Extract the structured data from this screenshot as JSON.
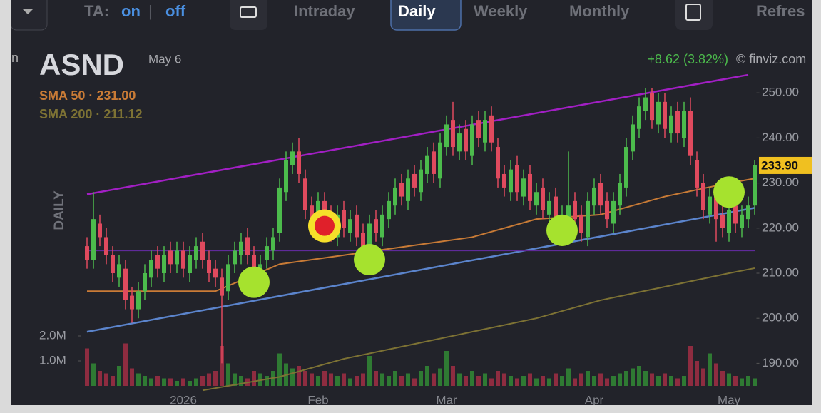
{
  "toolbar": {
    "ta": "TA:",
    "on": "on",
    "divider": "|",
    "off": "off",
    "tabs": [
      "Intraday",
      "Daily",
      "Weekly",
      "Monthly"
    ],
    "active_tab": 1,
    "refresh": "Refres"
  },
  "chart_data": {
    "type": "candlestick",
    "cut_text": "n",
    "title": "ASND",
    "date": "May 6",
    "change": "+8.62 (3.82%)",
    "source": "© finviz.com",
    "period": "DAILY",
    "separator": "·",
    "categories": [
      null,
      null,
      null,
      null,
      null,
      null,
      null,
      null,
      null,
      null,
      null,
      null,
      null,
      null,
      null,
      "2026",
      null,
      null,
      null,
      null,
      null,
      null,
      null,
      null,
      null,
      null,
      null,
      null,
      null,
      null,
      null,
      null,
      null,
      null,
      null,
      null,
      "Feb",
      null,
      null,
      null,
      null,
      null,
      null,
      null,
      null,
      null,
      null,
      null,
      null,
      null,
      null,
      null,
      null,
      null,
      null,
      null,
      "Mar",
      null,
      null,
      null,
      null,
      null,
      null,
      null,
      null,
      null,
      null,
      null,
      null,
      null,
      null,
      null,
      null,
      null,
      null,
      null,
      null,
      null,
      null,
      "Apr",
      null,
      null,
      null,
      null,
      null,
      null,
      null,
      null,
      null,
      null,
      null,
      null,
      null,
      null,
      null,
      null,
      null,
      null,
      null,
      null,
      "May",
      null,
      null,
      null,
      null
    ],
    "ohlc": {
      "up_color": "#4cbb4c",
      "down_color": "#e04a5e",
      "open": [
        216,
        213,
        221,
        218,
        214,
        209,
        211,
        205,
        202,
        206,
        209,
        214,
        210,
        215,
        212,
        215,
        210,
        213,
        217,
        213,
        211,
        209,
        206,
        212,
        214,
        218,
        214,
        209,
        213,
        215,
        219,
        228,
        234,
        237,
        231,
        225,
        221,
        226,
        223,
        218,
        224,
        219,
        223,
        219,
        214,
        222,
        218,
        222,
        225,
        230,
        226,
        232,
        228,
        232,
        237,
        231,
        238,
        244,
        237,
        242,
        236,
        244,
        239,
        245,
        238,
        232,
        228,
        234,
        227,
        232,
        225,
        229,
        223,
        227,
        220,
        222,
        226,
        223,
        218,
        225,
        230,
        226,
        221,
        225,
        229,
        237,
        242,
        246,
        250,
        243,
        248,
        241,
        246,
        240,
        246,
        235,
        230,
        223,
        228,
        223,
        219,
        225,
        220,
        222,
        225
      ],
      "high": [
        218,
        228,
        223,
        220,
        216,
        214,
        213,
        207,
        208,
        212,
        215,
        216,
        216,
        217,
        217,
        217,
        216,
        218,
        219,
        215,
        213,
        211,
        214,
        217,
        219,
        220,
        216,
        214,
        218,
        220,
        231,
        237,
        239,
        240,
        233,
        227,
        228,
        228,
        225,
        225,
        226,
        224,
        225,
        221,
        223,
        224,
        225,
        228,
        231,
        232,
        233,
        234,
        235,
        238,
        239,
        241,
        245,
        248,
        243,
        244,
        245,
        246,
        246,
        247,
        240,
        234,
        235,
        236,
        233,
        234,
        230,
        231,
        228,
        229,
        225,
        237,
        228,
        225,
        228,
        231,
        232,
        228,
        228,
        232,
        240,
        245,
        249,
        251,
        251,
        250,
        250,
        247,
        248,
        248,
        249,
        237,
        232,
        229,
        230,
        225,
        226,
        227,
        225,
        227,
        235
      ],
      "low": [
        211,
        211,
        216,
        212,
        208,
        207,
        202,
        199,
        200,
        204,
        207,
        209,
        208,
        210,
        210,
        209,
        208,
        211,
        211,
        208,
        207,
        190,
        204,
        210,
        212,
        212,
        206,
        207,
        211,
        213,
        217,
        226,
        232,
        230,
        222,
        219,
        219,
        220,
        217,
        216,
        218,
        217,
        216,
        213,
        212,
        217,
        216,
        220,
        223,
        225,
        224,
        227,
        226,
        230,
        230,
        229,
        236,
        236,
        235,
        235,
        234,
        238,
        237,
        237,
        229,
        227,
        226,
        226,
        225,
        224,
        223,
        222,
        221,
        219,
        218,
        220,
        220,
        217,
        216,
        223,
        223,
        220,
        219,
        223,
        227,
        235,
        240,
        244,
        242,
        241,
        240,
        239,
        239,
        238,
        234,
        227,
        222,
        221,
        217,
        218,
        217,
        219,
        218,
        220,
        223
      ],
      "close": [
        213,
        222,
        218,
        214,
        210,
        212,
        204,
        202,
        206,
        210,
        213,
        211,
        214,
        212,
        215,
        211,
        214,
        216,
        213,
        210,
        209,
        205,
        212,
        215,
        217,
        214,
        209,
        212,
        216,
        218,
        229,
        235,
        237,
        232,
        224,
        221,
        226,
        222,
        219,
        223,
        220,
        222,
        218,
        215,
        221,
        219,
        223,
        226,
        229,
        227,
        231,
        229,
        233,
        236,
        232,
        239,
        243,
        238,
        241,
        237,
        243,
        240,
        244,
        239,
        231,
        229,
        233,
        228,
        231,
        226,
        228,
        224,
        226,
        221,
        223,
        225,
        222,
        219,
        226,
        229,
        225,
        222,
        226,
        230,
        238,
        243,
        247,
        249,
        244,
        248,
        242,
        245,
        241,
        246,
        236,
        229,
        224,
        227,
        222,
        220,
        224,
        221,
        223,
        225,
        233.9
      ]
    },
    "last_price": {
      "value": 233.9,
      "label": "233.90",
      "color": "#f0c020"
    },
    "volume": {
      "up_color": "#2f7a33",
      "down_color": "#8e2c40",
      "values": [
        1.5,
        0.9,
        0.6,
        0.5,
        0.4,
        0.8,
        1.7,
        0.7,
        0.5,
        0.4,
        0.3,
        0.4,
        0.3,
        0.3,
        0.2,
        0.3,
        0.2,
        0.3,
        0.4,
        0.5,
        0.6,
        1.6,
        0.9,
        0.5,
        0.4,
        0.3,
        0.6,
        0.5,
        0.4,
        0.6,
        1.3,
        0.9,
        0.7,
        0.8,
        0.6,
        0.5,
        0.4,
        0.6,
        0.5,
        0.4,
        0.5,
        0.3,
        0.4,
        0.5,
        1.2,
        0.6,
        0.5,
        0.4,
        0.6,
        0.4,
        0.5,
        0.3,
        0.6,
        0.8,
        0.5,
        0.7,
        1.4,
        0.8,
        0.5,
        0.4,
        0.6,
        0.4,
        0.5,
        0.3,
        0.6,
        0.5,
        0.4,
        0.3,
        0.4,
        0.5,
        0.3,
        0.4,
        0.3,
        0.5,
        0.4,
        0.7,
        0.3,
        0.5,
        0.6,
        0.4,
        0.5,
        0.3,
        0.4,
        0.5,
        0.6,
        0.7,
        0.8,
        0.6,
        0.5,
        0.4,
        0.5,
        0.4,
        0.3,
        0.4,
        1.6,
        1.0,
        0.7,
        1.3,
        0.9,
        0.6,
        0.5,
        0.4,
        0.3,
        0.4,
        0.3
      ],
      "vlim": [
        0,
        13
      ],
      "ticks": [
        {
          "value": 2,
          "label": "2.0M"
        },
        {
          "value": 1,
          "label": "1.0M"
        }
      ]
    },
    "sma": [
      {
        "name": "SMA 50",
        "color": "#c97b36",
        "value": 231.0,
        "value_label": "231.00",
        "x": [
          0,
          10,
          20,
          30,
          40,
          50,
          60,
          70,
          80,
          90,
          100,
          104
        ],
        "values": [
          206,
          206,
          206,
          212,
          214,
          216,
          218,
          222,
          223,
          227,
          230,
          231
        ]
      },
      {
        "name": "SMA 200",
        "color": "#7d7234",
        "value": 211.12,
        "value_label": "211.12",
        "x": [
          18,
          30,
          40,
          50,
          60,
          70,
          80,
          90,
          100,
          104
        ],
        "values": [
          184,
          187,
          191,
          194,
          197,
          200,
          204,
          207,
          210,
          211.12
        ]
      }
    ],
    "ylim": [
      185,
      257
    ],
    "yticks": [
      {
        "value": 250,
        "label": "250.00"
      },
      {
        "value": 240,
        "label": "240.00"
      },
      {
        "value": 230,
        "label": "230.00"
      },
      {
        "value": 220,
        "label": "220.00"
      },
      {
        "value": 210,
        "label": "210.00"
      },
      {
        "value": 200,
        "label": "200.00"
      },
      {
        "value": 190,
        "label": "190.00"
      }
    ],
    "trendlines": [
      {
        "color": "#a21fc4",
        "x": [
          0,
          103
        ],
        "y": [
          227.5,
          254
        ]
      },
      {
        "color": "#5b84cc",
        "x": [
          0,
          104
        ],
        "y": [
          197,
          224.5
        ]
      },
      {
        "color": "#5f2a9a",
        "x": [
          0,
          104
        ],
        "y": [
          215,
          215
        ]
      }
    ],
    "markers": [
      {
        "x": 26,
        "y": 208,
        "color": "#a6e22e"
      },
      {
        "x": 44,
        "y": 213,
        "color": "#a6e22e"
      },
      {
        "x": 74,
        "y": 219.5,
        "color": "#a6e22e"
      },
      {
        "x": 100,
        "y": 228,
        "color": "#a6e22e"
      },
      {
        "x": 37,
        "y": 220.5,
        "color": "#e0202a",
        "ring": "#f5e02a"
      }
    ]
  }
}
